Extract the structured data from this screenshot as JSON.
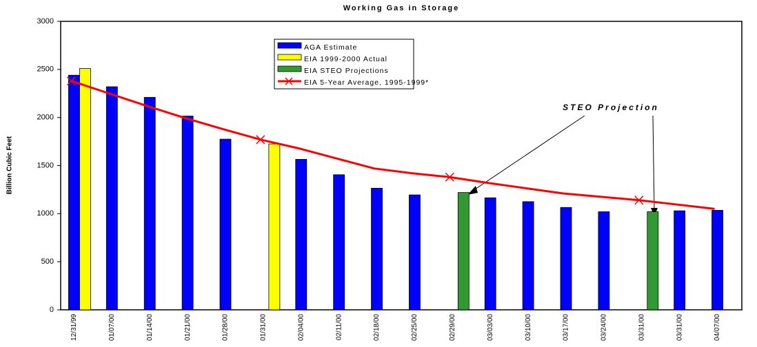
{
  "chart_data": {
    "type": "bar",
    "title": "Working Gas in Storage",
    "y_label": "Billion Cubic Feet",
    "annotation": "STEO Projection",
    "categories": [
      "12/31/99",
      "01/07/00",
      "01/14/00",
      "01/21/00",
      "01/28/00",
      "01/31/00",
      "02/04/00",
      "02/11/00",
      "02/18/00",
      "02/25/00",
      "02/29/00",
      "03/03/00",
      "03/10/00",
      "03/17/00",
      "03/24/00",
      "03/31/00",
      "03/31/00",
      "04/07/00"
    ],
    "series": [
      {
        "name": "AGA Estimate",
        "color": "#0000ff",
        "values": [
          2440,
          2320,
          2210,
          2015,
          1775,
          null,
          1565,
          1405,
          1265,
          1195,
          null,
          1165,
          1125,
          1065,
          1020,
          null,
          1030,
          1035
        ]
      },
      {
        "name": "EIA 1999-2000 Actual",
        "color": "#ffff00",
        "values": [
          2510,
          null,
          null,
          null,
          null,
          1725,
          null,
          null,
          null,
          null,
          null,
          null,
          null,
          null,
          null,
          null,
          null,
          null
        ]
      },
      {
        "name": "EIA STEO Projections",
        "color": "#339933",
        "values": [
          null,
          null,
          null,
          null,
          null,
          null,
          null,
          null,
          null,
          null,
          1220,
          null,
          null,
          null,
          null,
          1020,
          null,
          null
        ]
      },
      {
        "name": "EIA 5-Year Average, 1995-1999*",
        "color": "#ff0000",
        "type": "line",
        "values": [
          2380,
          2250,
          2120,
          1995,
          1880,
          1770,
          1680,
          1575,
          1470,
          1420,
          1380,
          1320,
          1265,
          1210,
          1175,
          1140,
          1095,
          1050
        ]
      }
    ],
    "ylim": [
      0,
      3000
    ],
    "yticks": [
      0,
      500,
      1000,
      1500,
      2000,
      2500,
      3000
    ],
    "grid": false
  }
}
